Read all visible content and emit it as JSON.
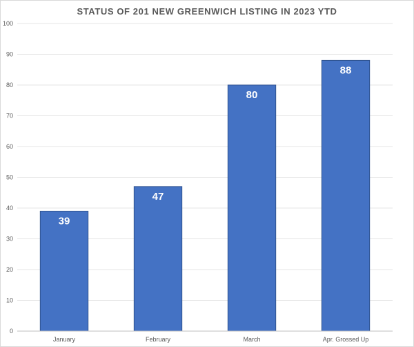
{
  "chart_data": {
    "type": "bar",
    "title": "STATUS OF 201 NEW GREENWICH LISTING IN 2023 YTD",
    "xlabel": "",
    "ylabel": "",
    "categories": [
      "January",
      "February",
      "March",
      "Apr. Grossed Up"
    ],
    "values": [
      39,
      47,
      80,
      88
    ],
    "data_labels": [
      "39",
      "47",
      "80",
      "88"
    ],
    "ylim": [
      0,
      100
    ],
    "yticks": [
      0,
      10,
      20,
      30,
      40,
      50,
      60,
      70,
      80,
      90,
      100
    ],
    "grid": true,
    "legend": "none",
    "colors": {
      "bar_fill": "#4472c4",
      "bar_stroke": "#2f528f",
      "gridline": "#e4e4e4",
      "axis": "#bfbfbf",
      "text": "#595959"
    }
  }
}
